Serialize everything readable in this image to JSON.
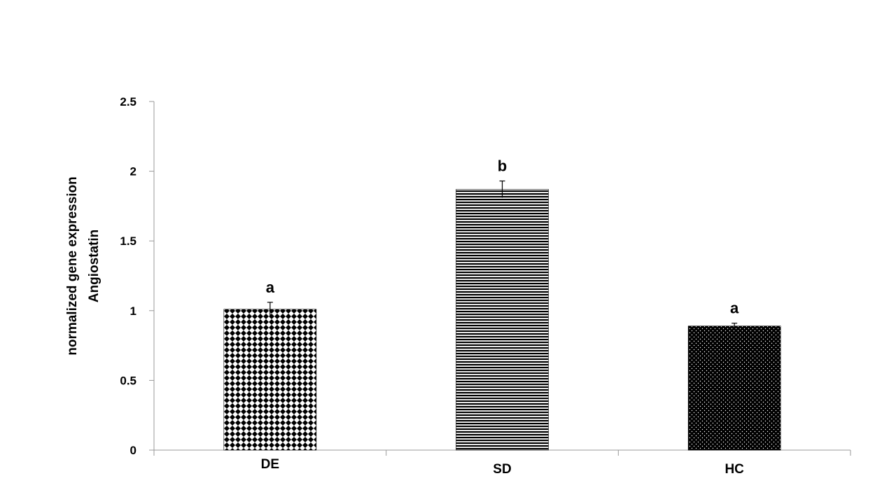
{
  "chart_data": {
    "type": "bar",
    "title": "",
    "xlabel": "",
    "ylabel_lines": [
      "normalized gene expression",
      "Angiostatin"
    ],
    "categories": [
      "DE",
      "SD",
      "HC"
    ],
    "values": [
      1.01,
      1.87,
      0.89
    ],
    "errors": [
      0.05,
      0.06,
      0.02
    ],
    "significance": [
      "a",
      "b",
      "a"
    ],
    "ylim": [
      0,
      2.5
    ],
    "yticks": [
      0,
      0.5,
      1,
      1.5,
      2,
      2.5
    ],
    "ytick_labels": [
      "0",
      "0.5",
      "1",
      "1.5",
      "2",
      "2.5"
    ],
    "patterns": [
      "diamond-check",
      "horizontal-lines",
      "dotted-black"
    ],
    "grid": false,
    "legend": "none",
    "colors": {
      "bar_fill": "#000000",
      "background": "#ffffff",
      "axis": "#999999"
    }
  }
}
